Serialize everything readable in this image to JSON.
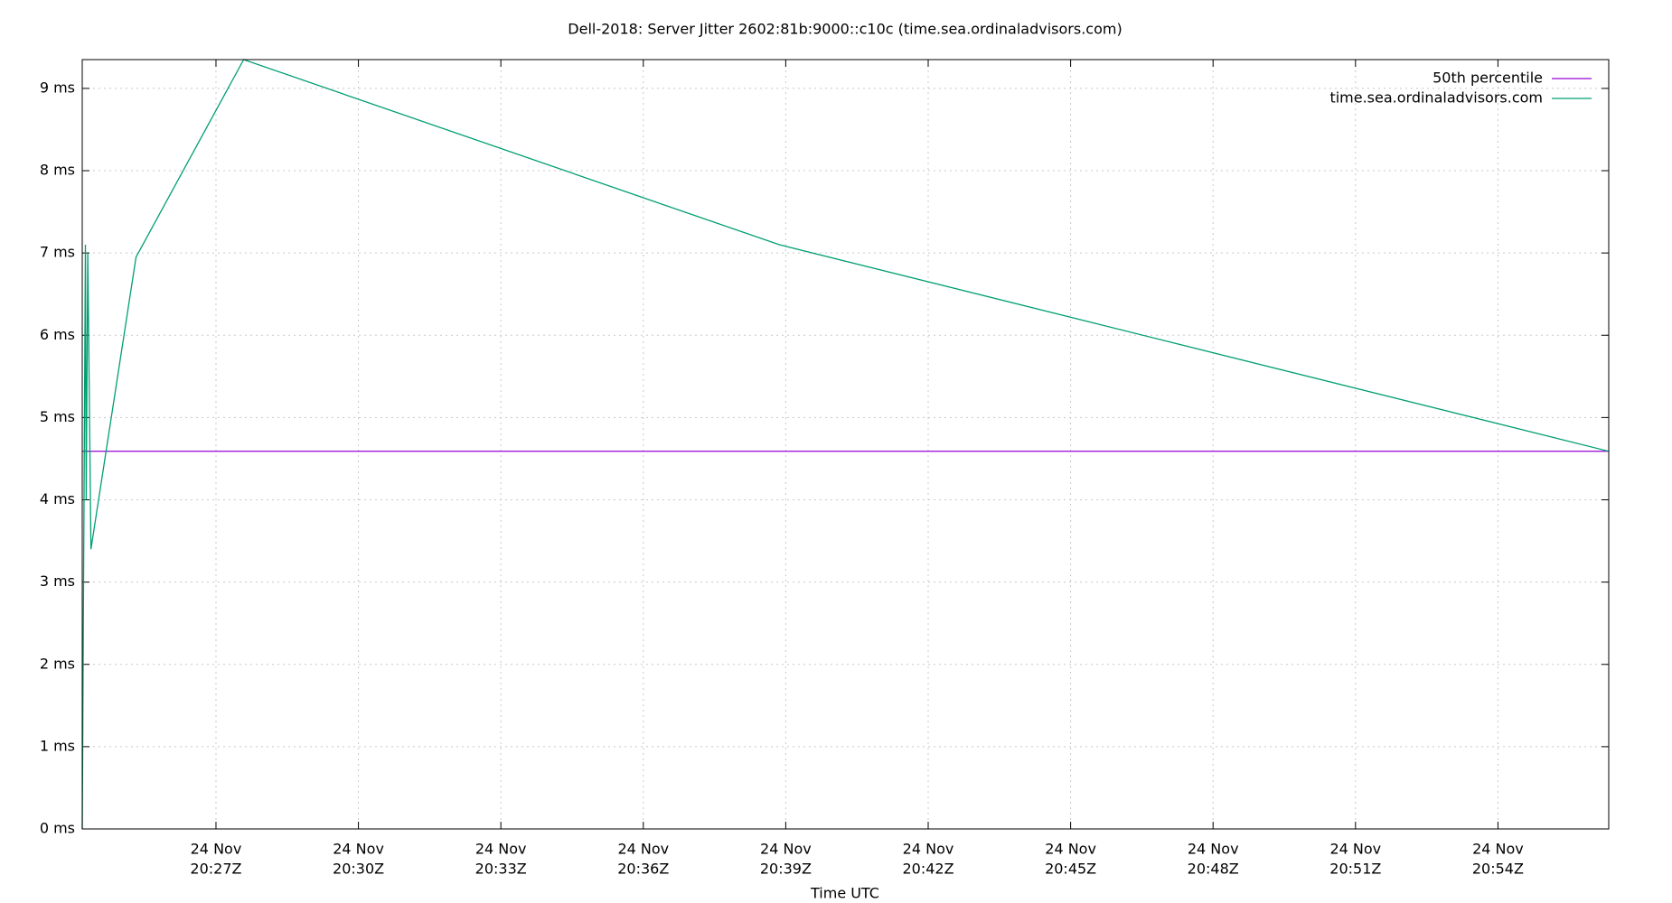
{
  "chart_data": {
    "type": "line",
    "title": "Dell-2018: Server Jitter 2602:81b:9000::c10c (time.sea.ordinaladvisors.com)",
    "x_label": "Time UTC",
    "xlim": [
      "20:24:11",
      "20:56:20"
    ],
    "xticks": [
      {
        "value": "20:27:00",
        "label": [
          "24 Nov",
          "20:27Z"
        ]
      },
      {
        "value": "20:30:00",
        "label": [
          "24 Nov",
          "20:30Z"
        ]
      },
      {
        "value": "20:33:00",
        "label": [
          "24 Nov",
          "20:33Z"
        ]
      },
      {
        "value": "20:36:00",
        "label": [
          "24 Nov",
          "20:36Z"
        ]
      },
      {
        "value": "20:39:00",
        "label": [
          "24 Nov",
          "20:39Z"
        ]
      },
      {
        "value": "20:42:00",
        "label": [
          "24 Nov",
          "20:42Z"
        ]
      },
      {
        "value": "20:45:00",
        "label": [
          "24 Nov",
          "20:45Z"
        ]
      },
      {
        "value": "20:48:00",
        "label": [
          "24 Nov",
          "20:48Z"
        ]
      },
      {
        "value": "20:51:00",
        "label": [
          "24 Nov",
          "20:51Z"
        ]
      },
      {
        "value": "20:54:00",
        "label": [
          "24 Nov",
          "20:54Z"
        ]
      }
    ],
    "ylim": [
      0,
      9.35
    ],
    "yticks": [
      {
        "value": 0,
        "label": "0 ms"
      },
      {
        "value": 1,
        "label": "1 ms"
      },
      {
        "value": 2,
        "label": "2 ms"
      },
      {
        "value": 3,
        "label": "3 ms"
      },
      {
        "value": 4,
        "label": "4 ms"
      },
      {
        "value": 5,
        "label": "5 ms"
      },
      {
        "value": 6,
        "label": "6 ms"
      },
      {
        "value": 7,
        "label": "7 ms"
      },
      {
        "value": 8,
        "label": "8 ms"
      },
      {
        "value": 9,
        "label": "9 ms"
      }
    ],
    "grid": true,
    "legend": "top-right",
    "series": [
      {
        "name": "50th percentile",
        "color": "#9400d3",
        "x": [
          "20:24:11",
          "20:56:20"
        ],
        "values": [
          4.59,
          4.59
        ]
      },
      {
        "name": "time.sea.ordinaladvisors.com",
        "color": "#009e73",
        "x": [
          "20:24:11",
          "20:24:15",
          "20:24:16",
          "20:24:18",
          "20:24:22",
          "20:25:19",
          "20:27:35",
          "20:38:52",
          "20:56:20"
        ],
        "values": [
          0,
          7.1,
          4.0,
          7.0,
          3.4,
          6.95,
          9.35,
          7.1,
          4.59
        ]
      }
    ]
  }
}
